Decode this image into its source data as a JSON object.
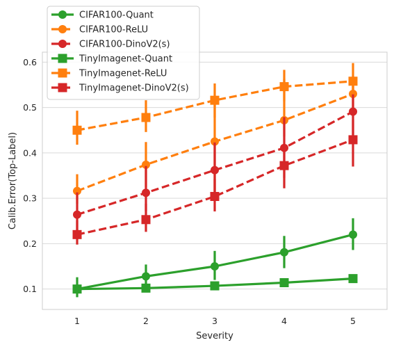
{
  "chart_data": {
    "type": "line",
    "title": "",
    "xlabel": "Severity",
    "ylabel": "Calib.Error(Top-Label)",
    "categories": [
      "1",
      "2",
      "3",
      "4",
      "5"
    ],
    "ylim": [
      0.055,
      0.622
    ],
    "yticks": [
      "0.1",
      "0.2",
      "0.3",
      "0.4",
      "0.5",
      "0.6"
    ],
    "grid": "horizontal",
    "legend_position": "top-left",
    "series": [
      {
        "name": "CIFAR100-Quant",
        "color": "#2ca02c",
        "marker": "circle",
        "dashed": false,
        "values": [
          0.1,
          0.128,
          0.15,
          0.181,
          0.22
        ],
        "err_low": [
          0.082,
          0.106,
          0.12,
          0.146,
          0.186
        ],
        "err_high": [
          0.126,
          0.154,
          0.184,
          0.217,
          0.256
        ]
      },
      {
        "name": "CIFAR100-ReLU",
        "color": "#ff7f0e",
        "marker": "circle",
        "dashed": true,
        "values": [
          0.316,
          0.374,
          0.425,
          0.472,
          0.53
        ],
        "err_low": [
          0.288,
          0.324,
          0.296,
          0.436,
          0.498
        ],
        "err_high": [
          0.353,
          0.424,
          0.519,
          0.563,
          0.56
        ]
      },
      {
        "name": "CIFAR100-DinoV2(s)",
        "color": "#d62728",
        "marker": "circle",
        "dashed": true,
        "values": [
          0.264,
          0.312,
          0.362,
          0.411,
          0.491
        ],
        "err_low": [
          0.221,
          0.272,
          0.315,
          0.345,
          0.44
        ],
        "err_high": [
          0.313,
          0.371,
          0.423,
          0.479,
          0.547
        ]
      },
      {
        "name": "TinyImagenet-Quant",
        "color": "#2ca02c",
        "marker": "square",
        "dashed": false,
        "values": [
          0.1,
          0.102,
          0.107,
          0.114,
          0.123
        ],
        "err_low": [
          0.096,
          0.098,
          0.102,
          0.109,
          0.116
        ],
        "err_high": [
          0.105,
          0.107,
          0.113,
          0.12,
          0.132
        ]
      },
      {
        "name": "TinyImagenet-ReLU",
        "color": "#ff7f0e",
        "marker": "square",
        "dashed": true,
        "values": [
          0.45,
          0.478,
          0.516,
          0.546,
          0.558
        ],
        "err_low": [
          0.418,
          0.446,
          0.478,
          0.514,
          0.529
        ],
        "err_high": [
          0.493,
          0.516,
          0.553,
          0.583,
          0.598
        ]
      },
      {
        "name": "TinyImagenet-DinoV2(s)",
        "color": "#d62728",
        "marker": "square",
        "dashed": true,
        "values": [
          0.22,
          0.253,
          0.304,
          0.372,
          0.429
        ],
        "err_low": [
          0.198,
          0.226,
          0.271,
          0.322,
          0.37
        ],
        "err_high": [
          0.251,
          0.288,
          0.342,
          0.418,
          0.473
        ]
      }
    ]
  }
}
